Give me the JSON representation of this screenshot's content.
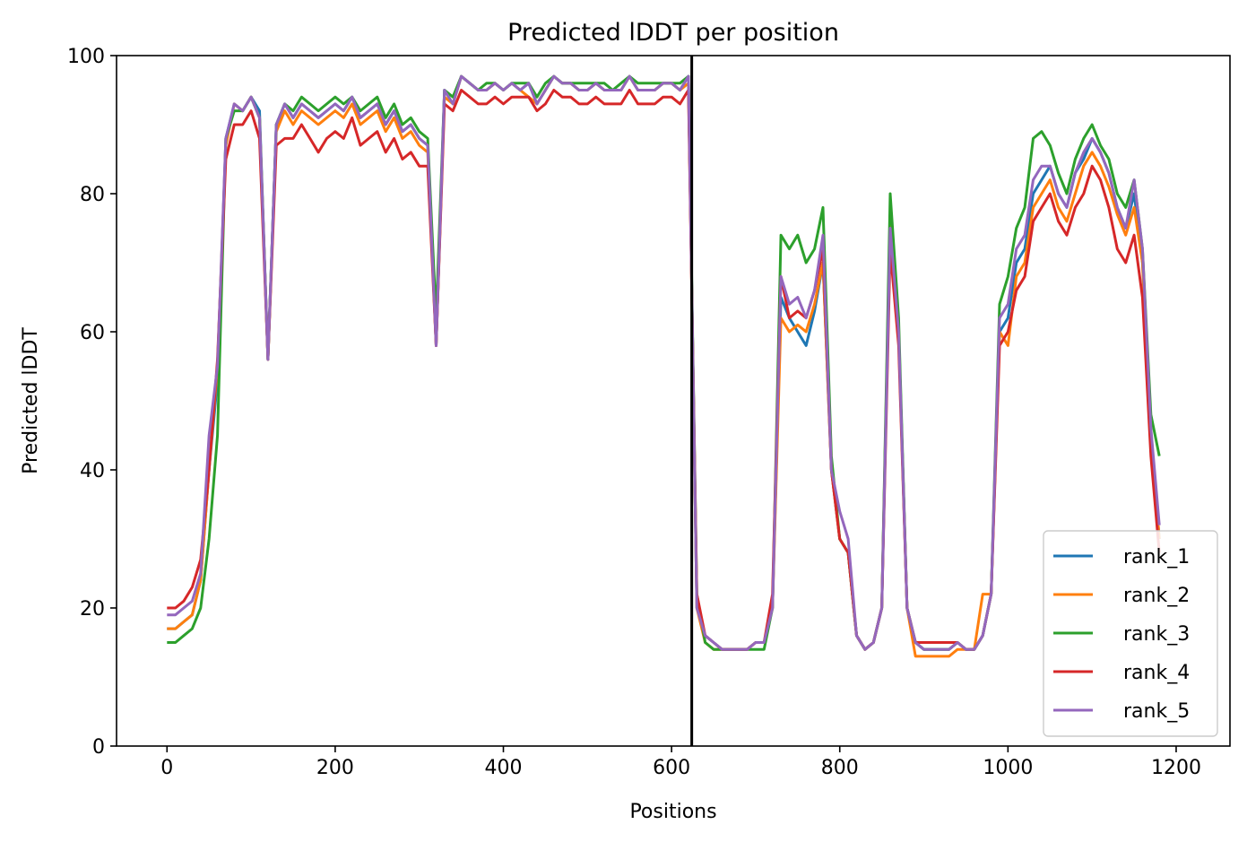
{
  "chart_data": {
    "type": "line",
    "title": "Predicted lDDT per position",
    "xlabel": "Positions",
    "ylabel": "Predicted lDDT",
    "xlim": [
      -60,
      1264
    ],
    "ylim": [
      0,
      100
    ],
    "xticks": [
      0,
      200,
      400,
      600,
      800,
      1000,
      1200
    ],
    "yticks": [
      0,
      20,
      40,
      60,
      80,
      100
    ],
    "grid": false,
    "legend": "lower right",
    "chain_break_x": 624,
    "chain_break_color": "#000000",
    "series_x": {
      "start": 0,
      "end": 1200,
      "step": 10
    },
    "series": [
      {
        "name": "rank_1",
        "color": "#1f77b4",
        "values": [
          17,
          17,
          18,
          19,
          24,
          40,
          53,
          88,
          93,
          92,
          94,
          92,
          56,
          90,
          93,
          91,
          93,
          92,
          91,
          92,
          93,
          92,
          94,
          91,
          92,
          93,
          90,
          92,
          89,
          90,
          88,
          87,
          58,
          95,
          93,
          97,
          96,
          95,
          95,
          96,
          95,
          96,
          95,
          96,
          93,
          95,
          97,
          96,
          96,
          95,
          95,
          96,
          95,
          95,
          95,
          97,
          95,
          95,
          95,
          96,
          96,
          95,
          97,
          20,
          16,
          15,
          14,
          14,
          14,
          14,
          15,
          15,
          20,
          65,
          62,
          60,
          58,
          63,
          70,
          40,
          30,
          28,
          16,
          14,
          15,
          20,
          76,
          60,
          20,
          15,
          14,
          14,
          14,
          14,
          15,
          14,
          14,
          16,
          22,
          60,
          62,
          70,
          72,
          80,
          82,
          84,
          80,
          78,
          83,
          85,
          88,
          86,
          83,
          78,
          75,
          80,
          70,
          45,
          30
        ]
      },
      {
        "name": "rank_2",
        "color": "#ff7f0e",
        "values": [
          17,
          17,
          18,
          19,
          24,
          40,
          55,
          87,
          93,
          92,
          94,
          91,
          56,
          89,
          92,
          90,
          92,
          91,
          90,
          91,
          92,
          91,
          93,
          90,
          91,
          92,
          89,
          91,
          88,
          89,
          87,
          86,
          58,
          94,
          93,
          97,
          96,
          95,
          95,
          96,
          95,
          96,
          95,
          94,
          93,
          95,
          97,
          96,
          96,
          95,
          95,
          96,
          95,
          95,
          95,
          97,
          95,
          95,
          95,
          96,
          96,
          95,
          96,
          20,
          15,
          14,
          14,
          14,
          14,
          14,
          15,
          15,
          20,
          62,
          60,
          61,
          60,
          64,
          70,
          40,
          30,
          28,
          16,
          14,
          15,
          20,
          77,
          60,
          20,
          13,
          13,
          13,
          13,
          13,
          14,
          14,
          14,
          22,
          22,
          60,
          58,
          68,
          70,
          78,
          80,
          82,
          78,
          76,
          80,
          84,
          86,
          84,
          81,
          77,
          74,
          78,
          70,
          45,
          30
        ]
      },
      {
        "name": "rank_3",
        "color": "#2ca02c",
        "values": [
          15,
          15,
          16,
          17,
          20,
          30,
          45,
          88,
          92,
          92,
          94,
          91,
          56,
          90,
          93,
          92,
          94,
          93,
          92,
          93,
          94,
          93,
          94,
          92,
          93,
          94,
          91,
          93,
          90,
          91,
          89,
          88,
          62,
          95,
          94,
          97,
          96,
          95,
          96,
          96,
          95,
          96,
          96,
          96,
          94,
          96,
          97,
          96,
          96,
          96,
          96,
          96,
          96,
          95,
          96,
          97,
          96,
          96,
          96,
          96,
          96,
          96,
          97,
          22,
          15,
          14,
          14,
          14,
          14,
          14,
          14,
          14,
          20,
          74,
          72,
          74,
          70,
          72,
          78,
          42,
          30,
          28,
          16,
          14,
          15,
          20,
          80,
          62,
          20,
          15,
          14,
          14,
          14,
          14,
          15,
          14,
          14,
          16,
          22,
          64,
          68,
          75,
          78,
          88,
          89,
          87,
          83,
          80,
          85,
          88,
          90,
          87,
          85,
          80,
          78,
          82,
          72,
          48,
          42
        ]
      },
      {
        "name": "rank_4",
        "color": "#d62728",
        "values": [
          20,
          20,
          21,
          23,
          27,
          40,
          56,
          85,
          90,
          90,
          92,
          88,
          56,
          87,
          88,
          88,
          90,
          88,
          86,
          88,
          89,
          88,
          91,
          87,
          88,
          89,
          86,
          88,
          85,
          86,
          84,
          84,
          58,
          93,
          92,
          95,
          94,
          93,
          93,
          94,
          93,
          94,
          94,
          94,
          92,
          93,
          95,
          94,
          94,
          93,
          93,
          94,
          93,
          93,
          93,
          95,
          93,
          93,
          93,
          94,
          94,
          93,
          95,
          22,
          16,
          15,
          14,
          14,
          14,
          14,
          15,
          15,
          22,
          68,
          62,
          63,
          62,
          66,
          72,
          40,
          30,
          28,
          16,
          14,
          15,
          20,
          72,
          58,
          20,
          15,
          15,
          15,
          15,
          15,
          15,
          14,
          14,
          16,
          22,
          58,
          60,
          66,
          68,
          76,
          78,
          80,
          76,
          74,
          78,
          80,
          84,
          82,
          78,
          72,
          70,
          74,
          65,
          42,
          28
        ]
      },
      {
        "name": "rank_5",
        "color": "#9467bd",
        "values": [
          19,
          19,
          20,
          21,
          25,
          45,
          55,
          88,
          93,
          92,
          94,
          91,
          56,
          90,
          93,
          91,
          93,
          92,
          91,
          92,
          93,
          92,
          94,
          91,
          92,
          93,
          90,
          92,
          89,
          90,
          88,
          87,
          58,
          95,
          93,
          97,
          96,
          95,
          95,
          96,
          95,
          96,
          95,
          96,
          93,
          95,
          97,
          96,
          96,
          95,
          95,
          96,
          95,
          95,
          95,
          97,
          95,
          95,
          95,
          96,
          96,
          95,
          97,
          20,
          16,
          15,
          14,
          14,
          14,
          14,
          15,
          15,
          20,
          68,
          64,
          65,
          62,
          66,
          74,
          40,
          34,
          30,
          16,
          14,
          15,
          20,
          75,
          60,
          20,
          15,
          14,
          14,
          14,
          14,
          15,
          14,
          14,
          16,
          22,
          62,
          64,
          72,
          74,
          82,
          84,
          84,
          80,
          78,
          83,
          86,
          88,
          86,
          83,
          78,
          75,
          82,
          72,
          46,
          32
        ]
      }
    ]
  }
}
